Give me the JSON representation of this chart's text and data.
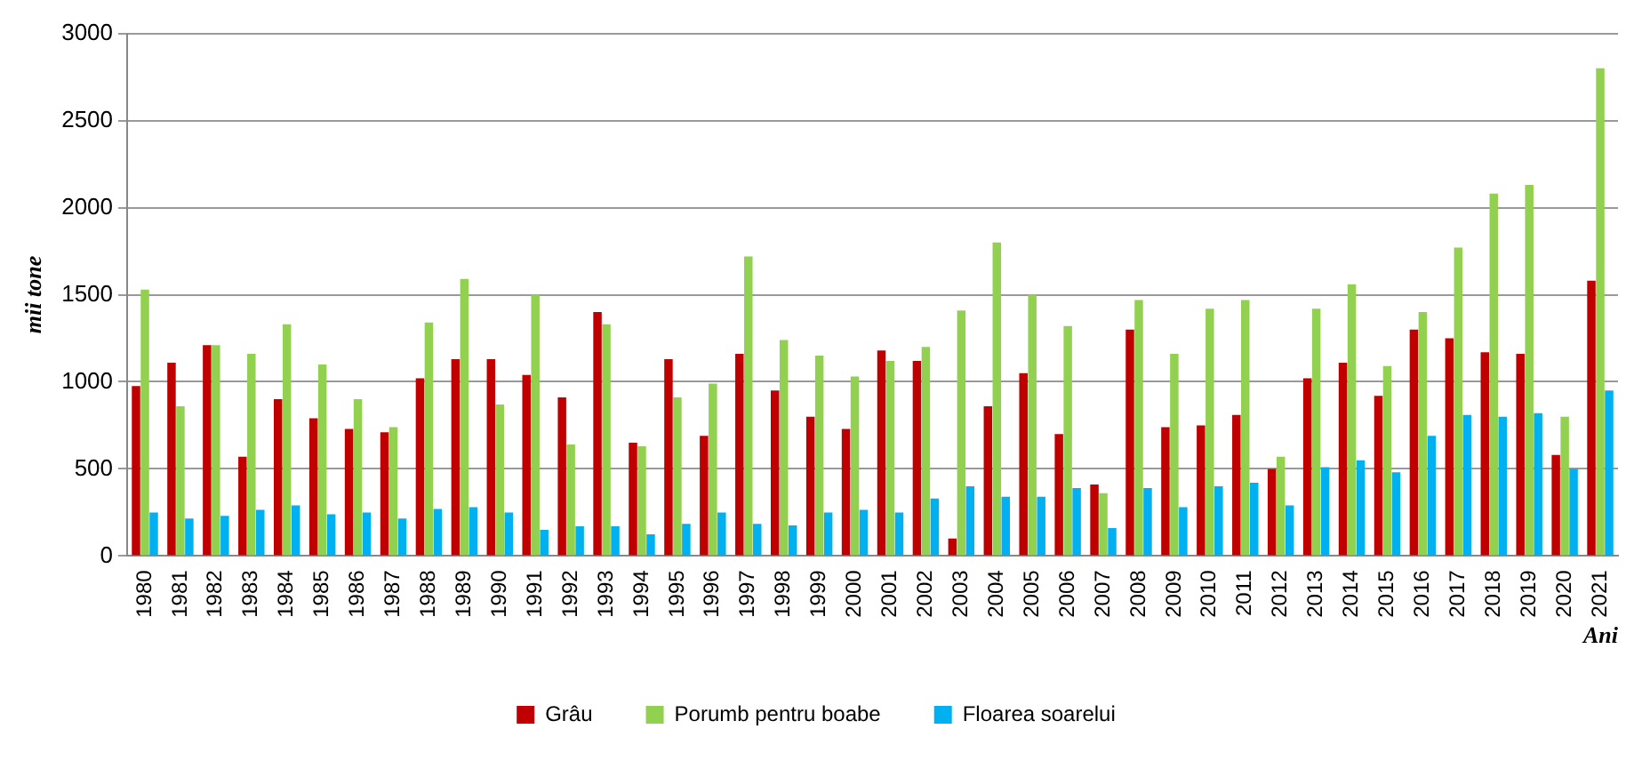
{
  "chart_data": {
    "type": "bar",
    "ylabel": "mii tone",
    "xlabel": "Ani",
    "categories": [
      "1980",
      "1981",
      "1982",
      "1983",
      "1984",
      "1985",
      "1986",
      "1987",
      "1988",
      "1989",
      "1990",
      "1991",
      "1992",
      "1993",
      "1994",
      "1995",
      "1996",
      "1997",
      "1998",
      "1999",
      "2000",
      "2001",
      "2002",
      "2003",
      "2004",
      "2005",
      "2006",
      "2007",
      "2008",
      "2009",
      "2010",
      "2011",
      "2012",
      "2013",
      "2014",
      "2015",
      "2016",
      "2017",
      "2018",
      "2019",
      "2020",
      "2021"
    ],
    "series": [
      {
        "name": "Grâu",
        "color": "#c00000",
        "values": [
          975,
          1110,
          1210,
          570,
          900,
          790,
          730,
          710,
          1020,
          1130,
          1130,
          1040,
          910,
          1400,
          650,
          1130,
          690,
          1160,
          950,
          800,
          730,
          1180,
          1120,
          100,
          860,
          1050,
          700,
          410,
          1300,
          740,
          750,
          810,
          500,
          1020,
          1110,
          920,
          1300,
          1250,
          1170,
          1160,
          580,
          1580
        ]
      },
      {
        "name": "Porumb pentru boabe",
        "color": "#92d050",
        "values": [
          1530,
          860,
          1210,
          1160,
          1330,
          1100,
          900,
          740,
          1340,
          1590,
          870,
          1500,
          640,
          1330,
          630,
          910,
          990,
          1720,
          1240,
          1150,
          1030,
          1120,
          1200,
          1410,
          1800,
          1500,
          1320,
          360,
          1470,
          1160,
          1420,
          1470,
          570,
          1420,
          1560,
          1090,
          1400,
          1770,
          2080,
          2130,
          800,
          2800
        ]
      },
      {
        "name": "Floarea soarelui",
        "color": "#00b0f0",
        "values": [
          250,
          215,
          230,
          265,
          290,
          240,
          250,
          215,
          270,
          280,
          250,
          150,
          170,
          170,
          125,
          185,
          250,
          185,
          175,
          250,
          265,
          250,
          330,
          400,
          340,
          340,
          390,
          160,
          390,
          280,
          400,
          420,
          290,
          510,
          550,
          480,
          690,
          810,
          800,
          820,
          500,
          950
        ]
      }
    ],
    "ylim": [
      0,
      3000
    ],
    "yticks": [
      0,
      500,
      1000,
      1500,
      2000,
      2500,
      3000
    ],
    "grid": "y",
    "legend": "bottom"
  }
}
